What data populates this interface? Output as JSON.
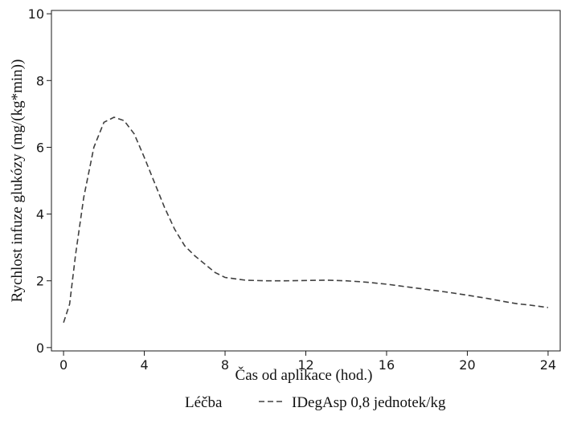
{
  "chart_data": {
    "type": "line",
    "title": "",
    "xlabel": "Čas od aplikace (hod.)",
    "ylabel": "Rychlost infuze glukózy (mg/(kg*min))",
    "xlim": [
      -0.6,
      24.6
    ],
    "ylim": [
      -0.1,
      10.1
    ],
    "xticks": [
      0,
      4,
      8,
      12,
      16,
      20,
      24
    ],
    "yticks": [
      0,
      2,
      4,
      6,
      8,
      10
    ],
    "grid": false,
    "legend": {
      "title": "Léčba",
      "placement": "bottom-center"
    },
    "series": [
      {
        "name": "IDegAsp 0,8 jednotek/kg",
        "style": "dashed",
        "color": "#404040",
        "x": [
          0,
          0.3,
          0.6,
          1.0,
          1.5,
          2.0,
          2.5,
          3.0,
          3.5,
          4.0,
          4.5,
          5.0,
          5.5,
          6.0,
          6.5,
          7.0,
          7.5,
          8.0,
          9.0,
          10.0,
          11.0,
          12.0,
          13.0,
          14.0,
          15.0,
          16.0,
          17.0,
          18.0,
          19.0,
          20.0,
          21.0,
          22.0,
          22.5,
          23.0,
          24.0
        ],
        "y": [
          0.75,
          1.3,
          2.8,
          4.5,
          6.0,
          6.75,
          6.9,
          6.8,
          6.4,
          5.7,
          4.95,
          4.2,
          3.55,
          3.05,
          2.75,
          2.5,
          2.25,
          2.1,
          2.02,
          2.0,
          2.0,
          2.01,
          2.02,
          2.0,
          1.96,
          1.9,
          1.82,
          1.74,
          1.66,
          1.57,
          1.47,
          1.36,
          1.31,
          1.28,
          1.2
        ]
      }
    ]
  }
}
